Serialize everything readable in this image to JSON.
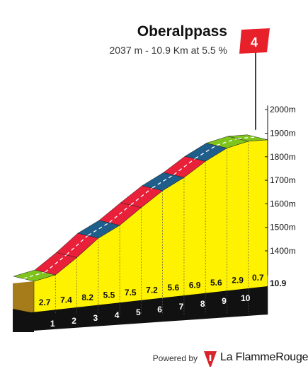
{
  "header": {
    "title": "Oberalppass",
    "subtitle": "2037 m - 10.9 Km at 5.5 %"
  },
  "marker": {
    "label": "4",
    "color": "#e8202a"
  },
  "footer": {
    "powered_label": "Powered by",
    "brand": "La FlammeRouge",
    "brand_color": "#d8232a"
  },
  "colors": {
    "face": "#fff200",
    "base": "#111111",
    "side": "#a67c1a",
    "grad_green": "#7fc41c",
    "grad_red": "#e8203a",
    "grad_blue": "#1f5d8a"
  },
  "chart_data": {
    "type": "area",
    "title": "Oberalppass",
    "subtitle": "2037 m - 10.9 Km at 5.5 %",
    "total_distance_km": 10.9,
    "total_distance_label": "10.9",
    "ylim": [
      1440,
      2037
    ],
    "y_ticks": [
      1400,
      1500,
      1600,
      1700,
      1800,
      1900,
      2000
    ],
    "y_tick_labels": [
      "1400m",
      "1500m",
      "1600m",
      "1700m",
      "1800m",
      "1900m",
      "2000m"
    ],
    "x_ticks": [
      1,
      2,
      3,
      4,
      5,
      6,
      7,
      8,
      9,
      10
    ],
    "segments": [
      {
        "km_start": 0,
        "km_end": 1,
        "gradient": 2.7,
        "label": "2.7"
      },
      {
        "km_start": 1,
        "km_end": 2,
        "gradient": 7.4,
        "label": "7.4"
      },
      {
        "km_start": 2,
        "km_end": 3,
        "gradient": 8.2,
        "label": "8.2"
      },
      {
        "km_start": 3,
        "km_end": 4,
        "gradient": 5.5,
        "label": "5.5"
      },
      {
        "km_start": 4,
        "km_end": 5,
        "gradient": 7.5,
        "label": "7.5"
      },
      {
        "km_start": 5,
        "km_end": 6,
        "gradient": 7.2,
        "label": "7.2"
      },
      {
        "km_start": 6,
        "km_end": 7,
        "gradient": 5.6,
        "label": "5.6"
      },
      {
        "km_start": 7,
        "km_end": 8,
        "gradient": 6.9,
        "label": "6.9"
      },
      {
        "km_start": 8,
        "km_end": 9,
        "gradient": 5.6,
        "label": "5.6"
      },
      {
        "km_start": 9,
        "km_end": 10,
        "gradient": 2.9,
        "label": "2.9"
      },
      {
        "km_start": 10,
        "km_end": 10.9,
        "gradient": 0.7,
        "label": "0.7"
      }
    ]
  }
}
